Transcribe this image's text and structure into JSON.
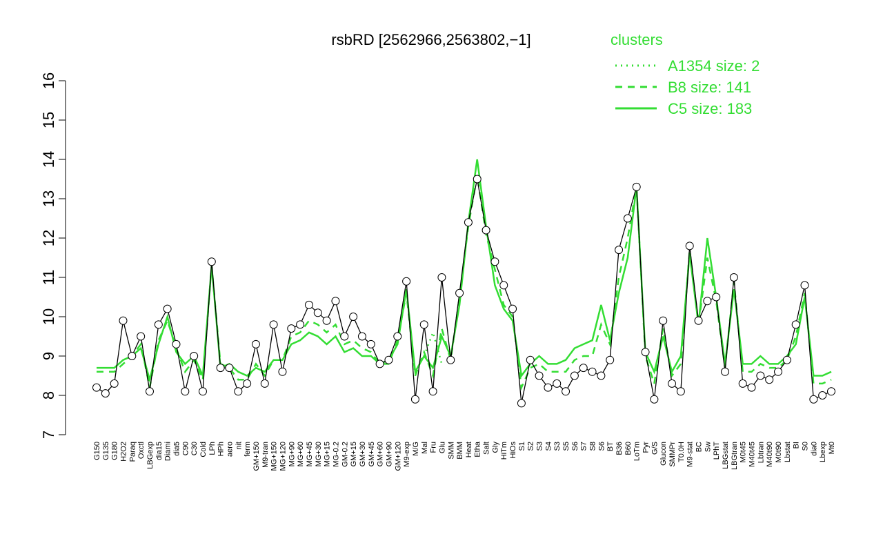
{
  "chart_data": {
    "type": "line",
    "title": "rsbRD [2562966,2563802,−1]",
    "legend_title": "clusters",
    "legend_position": "top-right",
    "color": "#000000",
    "categories": [
      "G150",
      "G135",
      "G180",
      "H2O2",
      "Paraq",
      "Oxctl",
      "LBGexp",
      "dia15",
      "Diami",
      "dia5",
      "C90",
      "C30",
      "Cold",
      "LPh",
      "HPh",
      "aero",
      "nit",
      "ferm",
      "GM+150",
      "M9-tran",
      "MG+150",
      "MG+120",
      "MG+90",
      "MG+60",
      "MG+45",
      "MG+30",
      "MG+15",
      "MG-0.2",
      "GM-0.2",
      "GM+15",
      "GM+30",
      "GM+45",
      "GM+60",
      "GM+90",
      "GM+120",
      "M9-exp",
      "M/G",
      "Mal",
      "Fru",
      "Glu",
      "SMM",
      "BMM",
      "Heat",
      "Etha",
      "Salt",
      "Gly",
      "HiTm",
      "HiOs",
      "S1",
      "S2",
      "S3",
      "S4",
      "S3",
      "S5",
      "S6",
      "S7",
      "S8",
      "S6",
      "BT",
      "B36",
      "B60",
      "LoTm",
      "Pyr",
      "G/S",
      "Glucon",
      "SMMPr",
      "T0.0H",
      "M9-stat",
      "BC",
      "Sw",
      "LPhT",
      "LBGstat",
      "LBGtran",
      "M0t45",
      "M40t45",
      "Lbtran",
      "M40t90",
      "M0t90",
      "Lbstat",
      "BI",
      "S0",
      "dia0",
      "Lbexp",
      "Mt0"
    ],
    "values": [
      8.2,
      8.05,
      8.3,
      9.9,
      9.0,
      9.5,
      8.1,
      9.8,
      10.2,
      9.3,
      8.1,
      9.0,
      8.1,
      11.4,
      8.7,
      8.7,
      8.1,
      8.3,
      9.3,
      8.3,
      9.8,
      8.6,
      9.7,
      9.8,
      10.3,
      10.1,
      9.9,
      10.4,
      9.5,
      10.0,
      9.5,
      9.3,
      8.8,
      8.9,
      9.5,
      10.9,
      7.9,
      9.8,
      8.1,
      11.0,
      8.9,
      10.6,
      12.4,
      13.5,
      12.2,
      11.4,
      10.8,
      10.2,
      7.8,
      8.9,
      8.5,
      8.2,
      8.3,
      8.1,
      8.5,
      8.7,
      8.6,
      8.5,
      8.9,
      11.7,
      12.5,
      13.3,
      9.1,
      7.9,
      9.9,
      8.3,
      8.1,
      11.8,
      9.9,
      10.4,
      10.5,
      8.6,
      11.0,
      8.3,
      8.2,
      8.5,
      8.4,
      8.6,
      8.9,
      9.8,
      10.8,
      7.9,
      8.0,
      8.1
    ],
    "series": [
      {
        "name": "A1354 size: 2",
        "color": "#33dd33",
        "linestyle": "dotted",
        "values": [
          null,
          null,
          null,
          null,
          null,
          null,
          null,
          null,
          null,
          null,
          null,
          null,
          null,
          null,
          null,
          null,
          null,
          null,
          null,
          null,
          null,
          null,
          null,
          null,
          null,
          null,
          null,
          null,
          null,
          null,
          null,
          null,
          null,
          null,
          null,
          null,
          null,
          9.0,
          9.6,
          8.8,
          null,
          null,
          null,
          null,
          null,
          null,
          null,
          null,
          null,
          null,
          null,
          null,
          null,
          null,
          null,
          null,
          null,
          null,
          null,
          null,
          null,
          null,
          null,
          null,
          null,
          null,
          null,
          null,
          null,
          null,
          null,
          null,
          null,
          null,
          null,
          null,
          null,
          null,
          null,
          null,
          null,
          null,
          null,
          null
        ]
      },
      {
        "name": "B8 size: 141",
        "color": "#33dd33",
        "linestyle": "dashed",
        "values": [
          8.6,
          8.6,
          8.6,
          8.8,
          9.0,
          9.3,
          8.2,
          9.4,
          9.9,
          9.2,
          8.6,
          8.9,
          8.4,
          11.3,
          8.8,
          8.7,
          8.4,
          8.4,
          8.8,
          8.5,
          8.9,
          8.9,
          9.5,
          9.6,
          9.9,
          9.8,
          9.6,
          9.8,
          9.3,
          9.4,
          9.2,
          9.1,
          8.8,
          8.8,
          9.4,
          10.6,
          8.5,
          9.1,
          8.5,
          9.7,
          8.9,
          10.5,
          12.3,
          13.6,
          12.1,
          11.2,
          10.3,
          10.0,
          8.2,
          8.7,
          8.8,
          8.6,
          8.6,
          8.6,
          8.9,
          9.0,
          9.0,
          9.8,
          9.3,
          11.0,
          12.0,
          13.3,
          9.0,
          8.3,
          9.7,
          8.5,
          8.8,
          11.7,
          9.8,
          11.5,
          10.4,
          8.7,
          10.9,
          8.6,
          8.6,
          8.8,
          8.7,
          8.7,
          8.9,
          9.5,
          10.6,
          8.3,
          8.3,
          8.4
        ]
      },
      {
        "name": "C5 size: 183",
        "color": "#33dd33",
        "linestyle": "solid",
        "values": [
          8.7,
          8.7,
          8.7,
          8.9,
          9.0,
          9.2,
          8.4,
          9.3,
          10.0,
          9.1,
          8.8,
          9.0,
          8.5,
          11.3,
          8.7,
          8.8,
          8.6,
          8.5,
          8.7,
          8.6,
          8.9,
          8.9,
          9.3,
          9.4,
          9.6,
          9.5,
          9.3,
          9.5,
          9.1,
          9.2,
          9.0,
          9.0,
          8.8,
          8.9,
          9.3,
          10.7,
          8.6,
          9.0,
          8.7,
          9.5,
          9.0,
          10.3,
          12.4,
          14.0,
          12.3,
          10.8,
          10.2,
          9.9,
          8.5,
          8.8,
          9.0,
          8.8,
          8.8,
          8.9,
          9.2,
          9.3,
          9.4,
          10.3,
          9.4,
          10.6,
          11.5,
          13.3,
          9.1,
          8.6,
          9.5,
          8.6,
          9.0,
          11.6,
          9.8,
          12.0,
          10.5,
          8.8,
          10.7,
          8.8,
          8.8,
          9.0,
          8.8,
          8.8,
          9.0,
          9.3,
          10.5,
          8.5,
          8.5,
          8.6
        ]
      }
    ],
    "ylim": [
      7,
      16
    ],
    "yticks": [
      7,
      8,
      9,
      10,
      11,
      12,
      13,
      14,
      15,
      16
    ]
  }
}
